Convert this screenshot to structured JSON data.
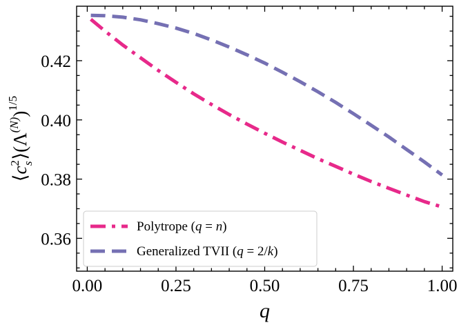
{
  "chart_data": {
    "type": "line",
    "xlabel": "q",
    "ylabel": {
      "open": "⟨",
      "c": "c",
      "c_sup": "2",
      "c_sub": "s",
      "close": "⟩",
      "lparen": "(",
      "lambda": "Λ",
      "lambda_sup": "(N)",
      "rparen": ")",
      "power": "1/5"
    },
    "xlim": [
      -0.03,
      1.03
    ],
    "ylim": [
      0.3489,
      0.4384
    ],
    "xticks": [
      0.0,
      0.25,
      0.5,
      0.75,
      1.0
    ],
    "xtick_labels": [
      "0.00",
      "0.25",
      "0.50",
      "0.75",
      "1.00"
    ],
    "xticks_minor": [
      0.05,
      0.1,
      0.15,
      0.2,
      0.3,
      0.35,
      0.4,
      0.45,
      0.55,
      0.6,
      0.65,
      0.7,
      0.8,
      0.85,
      0.9,
      0.95
    ],
    "yticks": [
      0.36,
      0.38,
      0.4,
      0.42
    ],
    "ytick_labels": [
      "0.36",
      "0.38",
      "0.40",
      "0.42"
    ],
    "yticks_minor": [
      0.35,
      0.355,
      0.365,
      0.37,
      0.375,
      0.385,
      0.39,
      0.395,
      0.405,
      0.41,
      0.415,
      0.425,
      0.43,
      0.435
    ],
    "grid": false,
    "legend_position": "lower-left",
    "series": [
      {
        "name": "Polytrope (q = n)",
        "legend": {
          "prefix": "Polytrope (",
          "var": "q",
          "mid": " = ",
          "rhs": "n",
          "suffix": ")"
        },
        "color": "#e7298a",
        "style": "dashdot",
        "x": [
          0.01,
          0.05,
          0.1,
          0.15,
          0.2,
          0.25,
          0.3,
          0.35,
          0.4,
          0.45,
          0.5,
          0.55,
          0.6,
          0.65,
          0.7,
          0.75,
          0.8,
          0.85,
          0.9,
          0.95,
          1.0
        ],
        "y": [
          0.434,
          0.43,
          0.4253,
          0.421,
          0.4167,
          0.4127,
          0.4088,
          0.4052,
          0.4018,
          0.3986,
          0.3955,
          0.3925,
          0.3897,
          0.3869,
          0.3843,
          0.3817,
          0.3792,
          0.3769,
          0.3746,
          0.3724,
          0.3706
        ]
      },
      {
        "name": "Generalized TVII (q = 2/k)",
        "legend": {
          "prefix": "Generalized TVII (",
          "var": "q",
          "mid": " = 2/",
          "rhs": "k",
          "suffix": ")"
        },
        "color": "#7570b3",
        "style": "dashed",
        "x": [
          0.01,
          0.05,
          0.1,
          0.15,
          0.2,
          0.25,
          0.3,
          0.35,
          0.4,
          0.45,
          0.5,
          0.55,
          0.6,
          0.65,
          0.7,
          0.75,
          0.8,
          0.85,
          0.9,
          0.95,
          1.0
        ],
        "y": [
          0.4353,
          0.4352,
          0.4347,
          0.4338,
          0.4325,
          0.431,
          0.4292,
          0.427,
          0.4246,
          0.422,
          0.4192,
          0.4161,
          0.4129,
          0.4095,
          0.4059,
          0.4021,
          0.3982,
          0.3942,
          0.39,
          0.3858,
          0.3814
        ]
      }
    ]
  }
}
